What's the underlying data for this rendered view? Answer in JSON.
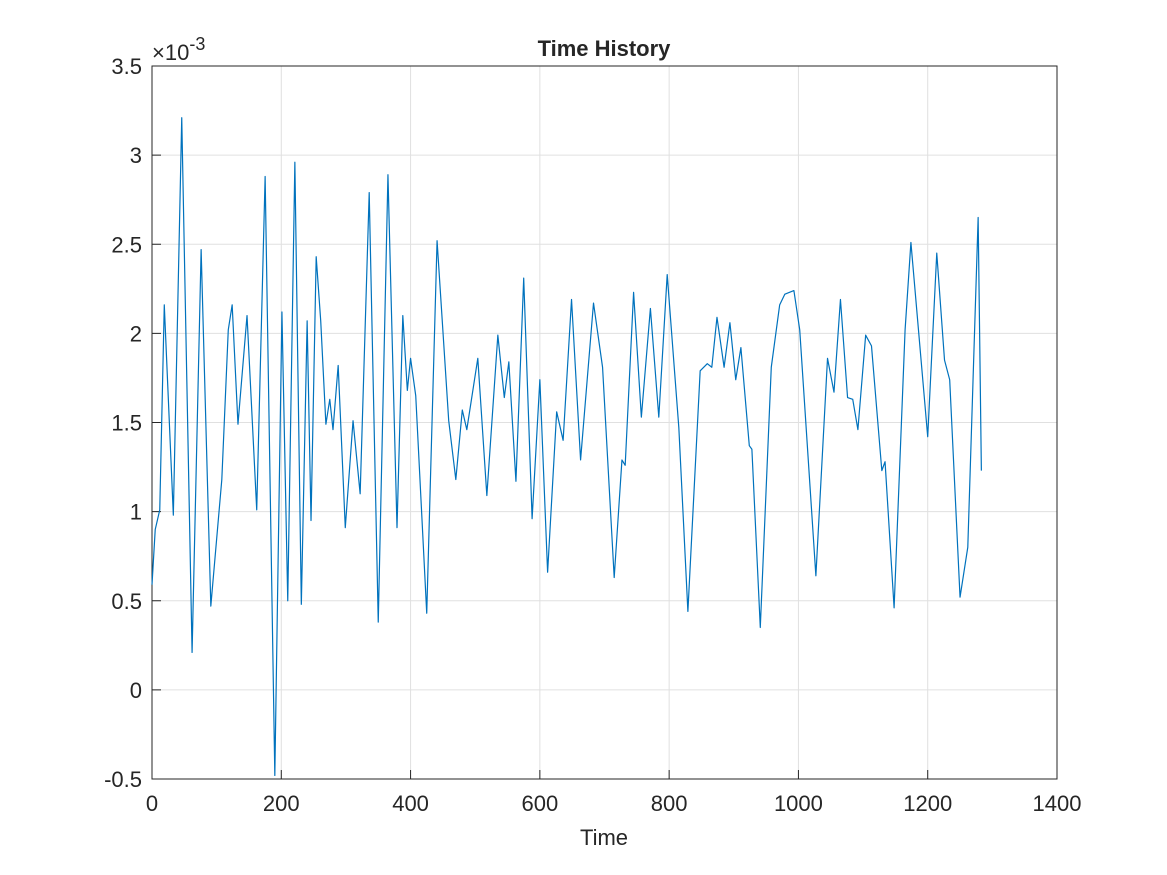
{
  "chart_data": {
    "type": "line",
    "title": "Time History",
    "xlabel": "Time",
    "y_multiplier": "×10",
    "y_exponent": "-3",
    "color": "#0072bd",
    "grid": true,
    "xlim": [
      0,
      1400
    ],
    "xticks": [
      0,
      200,
      400,
      600,
      800,
      1000,
      1200,
      1400
    ],
    "ylim": [
      -0.5,
      3.5
    ],
    "yticks": [
      -0.5,
      0,
      0.5,
      1,
      1.5,
      2,
      2.5,
      3,
      3.5
    ],
    "x": [
      0,
      5,
      12,
      19,
      33,
      46,
      62,
      76,
      91,
      108,
      118,
      124,
      133,
      147,
      162,
      175,
      190,
      201,
      210,
      221,
      231,
      240,
      246,
      254,
      261,
      269,
      275,
      280,
      288,
      299,
      311,
      322,
      336,
      350,
      365,
      379,
      388,
      395,
      400,
      408,
      425,
      441,
      459,
      470,
      480,
      487,
      504,
      518,
      535,
      545,
      552,
      563,
      575,
      588,
      600,
      612,
      626,
      636,
      649,
      663,
      683,
      697,
      715,
      727,
      732,
      745,
      757,
      771,
      784,
      797,
      815,
      829,
      848,
      859,
      866,
      874,
      885,
      894,
      903,
      911,
      924,
      928,
      941,
      958,
      971,
      979,
      993,
      1002,
      1027,
      1045,
      1055,
      1065,
      1076,
      1084,
      1092,
      1104,
      1113,
      1129,
      1134,
      1148,
      1165,
      1174,
      1200,
      1214,
      1226,
      1234,
      1250,
      1262,
      1278,
      1283
    ],
    "values": [
      0.59,
      0.9,
      1.01,
      2.16,
      0.98,
      3.21,
      0.21,
      2.47,
      0.47,
      1.18,
      2.02,
      2.16,
      1.49,
      2.1,
      1.01,
      2.88,
      -0.48,
      2.12,
      0.5,
      2.96,
      0.48,
      2.07,
      0.95,
      2.43,
      2.07,
      1.49,
      1.63,
      1.46,
      1.82,
      0.91,
      1.51,
      1.1,
      2.79,
      0.38,
      2.89,
      0.91,
      2.1,
      1.68,
      1.86,
      1.65,
      0.43,
      2.52,
      1.51,
      1.18,
      1.57,
      1.46,
      1.86,
      1.09,
      1.99,
      1.64,
      1.84,
      1.17,
      2.31,
      0.96,
      1.74,
      0.66,
      1.56,
      1.4,
      2.19,
      1.29,
      2.17,
      1.81,
      0.63,
      1.29,
      1.26,
      2.23,
      1.53,
      2.14,
      1.53,
      2.33,
      1.47,
      0.44,
      1.79,
      1.83,
      1.81,
      2.09,
      1.81,
      2.06,
      1.74,
      1.92,
      1.37,
      1.35,
      0.35,
      1.81,
      2.16,
      2.22,
      2.24,
      2.02,
      0.64,
      1.86,
      1.67,
      2.19,
      1.64,
      1.63,
      1.46,
      1.99,
      1.93,
      1.23,
      1.28,
      0.46,
      2.02,
      2.51,
      1.42,
      2.45,
      1.85,
      1.74,
      0.52,
      0.8,
      2.65,
      1.23
    ]
  }
}
